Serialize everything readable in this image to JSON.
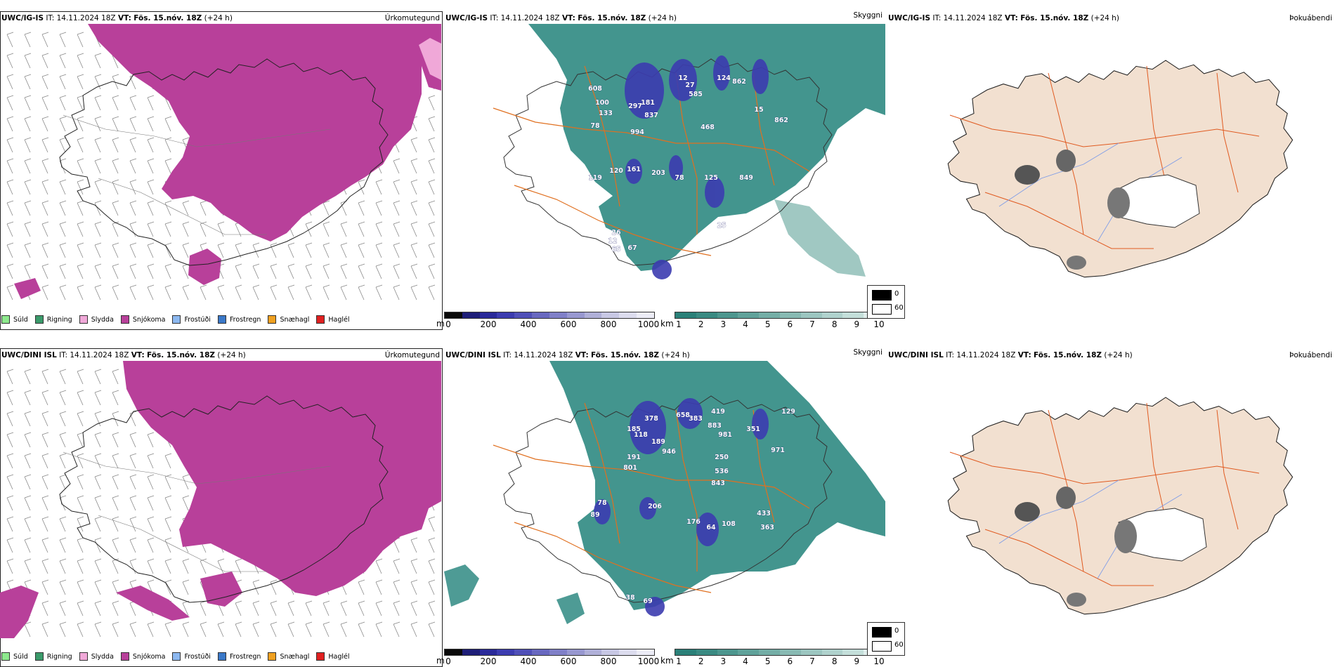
{
  "rows": [
    {
      "model": "UWC/IG-IS",
      "it_label": "IT:",
      "it_value": "14.11.2024 18Z",
      "vt_label": "VT:",
      "vt_value": "Fös. 15.nóv. 18Z",
      "lead": "(+24 h)",
      "labels": {
        "cloud": [
          "608",
          "100",
          "133",
          "297",
          "181",
          "837",
          "12",
          "27",
          "585",
          "124",
          "862",
          "15",
          "862",
          "78",
          "994",
          "468",
          "161",
          "120",
          "119",
          "203",
          "78",
          "125",
          "849",
          "26",
          "12",
          "65",
          "67",
          "25"
        ]
      }
    },
    {
      "model": "UWC/DINI ISL",
      "it_label": "IT:",
      "it_value": "14.11.2024 18Z",
      "vt_label": "VT:",
      "vt_value": "Fös. 15.nóv. 18Z",
      "lead": "(+24 h)",
      "labels": {
        "cloud": [
          "378",
          "185",
          "118",
          "189",
          "946",
          "191",
          "801",
          "658",
          "383",
          "419",
          "883",
          "981",
          "351",
          "129",
          "971",
          "250",
          "536",
          "843",
          "78",
          "206",
          "89",
          "176",
          "64",
          "108",
          "433",
          "363",
          "38",
          "69"
        ]
      }
    }
  ],
  "panel_titles": {
    "precip": "Úrkomutegund",
    "cloud": "Skyggni",
    "fog": "Þokuábendi"
  },
  "precip_legend": [
    {
      "label": "Súld",
      "color": "#8ce88c"
    },
    {
      "label": "Rigning",
      "color": "#3a9a6a"
    },
    {
      "label": "Slydda",
      "color": "#f0a8d8"
    },
    {
      "label": "Snjókoma",
      "color": "#b8409a"
    },
    {
      "label": "Frostúði",
      "color": "#8cb8f0"
    },
    {
      "label": "Frostregn",
      "color": "#3a78c8"
    },
    {
      "label": "Snæhagl",
      "color": "#f0a020"
    },
    {
      "label": "Haglél",
      "color": "#e02020"
    }
  ],
  "ceiling_bar": {
    "unit": "m",
    "ticks": [
      "0",
      "200",
      "400",
      "600",
      "800",
      "1000"
    ],
    "colors": [
      "#0a0a0a",
      "#1e1e78",
      "#2a2a9a",
      "#3c3cb0",
      "#5050b8",
      "#6868c0",
      "#8080c8",
      "#9898d0",
      "#b0b0d8",
      "#c8c8e4",
      "#dcdcee",
      "#ececf6"
    ]
  },
  "visibility_bar": {
    "unit": "km",
    "ticks": [
      "1",
      "2",
      "3",
      "4",
      "5",
      "6",
      "7",
      "8",
      "9",
      "10"
    ],
    "colors": [
      "#2a8078",
      "#3a8a82",
      "#4d968e",
      "#60a29a",
      "#74aea6",
      "#88bab3",
      "#9cc6c0",
      "#b0d2cd",
      "#c4dfda",
      "#e0eeec"
    ]
  },
  "fog_legend": {
    "low": "0",
    "high": "60"
  },
  "colors": {
    "snow": "#b8409a",
    "teal": "#2f8a82",
    "road": "#e07020",
    "land": "#f2e0d0",
    "river": "#7a9ae8"
  }
}
